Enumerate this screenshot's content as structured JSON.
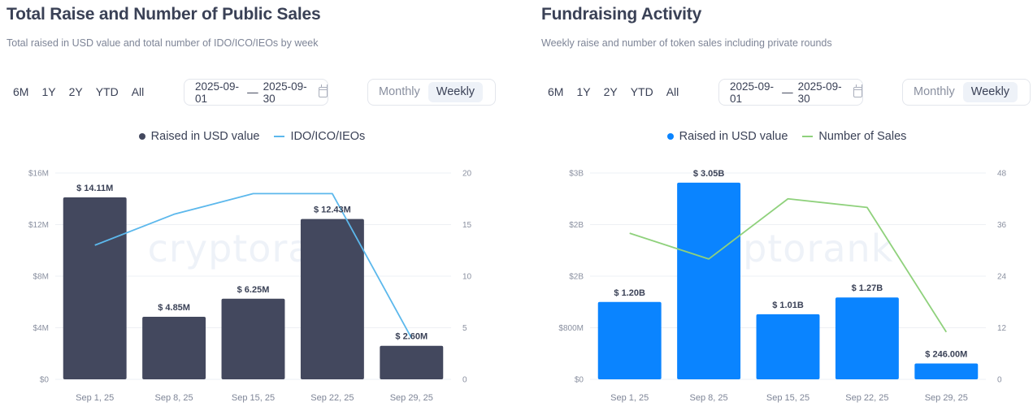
{
  "colors": {
    "bar_dark": "#43485e",
    "line_light_blue": "#5cb8ec",
    "bar_blue": "#0a84ff",
    "line_green": "#8fd17c",
    "grid": "#eef0f4"
  },
  "panels": [
    {
      "title": "Total Raise and Number of Public Sales",
      "subtitle": "Total raised in USD value and total number of IDO/ICO/IEOs by week",
      "ranges": [
        "6M",
        "1Y",
        "2Y",
        "YTD",
        "All"
      ],
      "date_from": "2025-09-01",
      "date_sep": "—",
      "date_to": "2025-09-30",
      "toggle": {
        "options": [
          "Monthly",
          "Weekly"
        ],
        "active": "Weekly"
      },
      "legend": [
        "Raised in USD value",
        "IDO/ICO/IEOs"
      ],
      "watermark": "cryptorank"
    },
    {
      "title": "Fundraising Activity",
      "subtitle": "Weekly raise and number of token sales including private rounds",
      "ranges": [
        "6M",
        "1Y",
        "2Y",
        "YTD",
        "All"
      ],
      "date_from": "2025-09-01",
      "date_sep": "—",
      "date_to": "2025-09-30",
      "toggle": {
        "options": [
          "Monthly",
          "Weekly"
        ],
        "active": "Weekly"
      },
      "legend": [
        "Raised in USD value",
        "Number of Sales"
      ],
      "watermark": "cryptorank"
    }
  ],
  "chart_data": [
    {
      "type": "bar+line",
      "title": "Total Raise and Number of Public Sales",
      "categories": [
        "Sep 1, 25",
        "Sep 8, 25",
        "Sep 15, 25",
        "Sep 22, 25",
        "Sep 29, 25"
      ],
      "series": [
        {
          "name": "Raised in USD value",
          "type": "bar",
          "axis": "left",
          "color": "#43485e",
          "values": [
            14110000,
            4850000,
            6250000,
            12430000,
            2600000
          ],
          "labels": [
            "$ 14.11M",
            "$ 4.85M",
            "$ 6.25M",
            "$ 12.43M",
            "$ 2.60M"
          ]
        },
        {
          "name": "IDO/ICO/IEOs",
          "type": "line",
          "axis": "right",
          "color": "#5cb8ec",
          "values": [
            13,
            16,
            18,
            18,
            4
          ]
        }
      ],
      "left_axis": {
        "range": [
          0,
          16000000
        ],
        "ticks": [
          "$0",
          "$4M",
          "$8M",
          "$12M",
          "$16M"
        ]
      },
      "right_axis": {
        "range": [
          0,
          20
        ],
        "ticks": [
          "0",
          "5",
          "10",
          "15",
          "20"
        ]
      },
      "grid": true,
      "legend_position": "top-center"
    },
    {
      "type": "bar+line",
      "title": "Fundraising Activity",
      "categories": [
        "Sep 1, 25",
        "Sep 8, 25",
        "Sep 15, 25",
        "Sep 22, 25",
        "Sep 29, 25"
      ],
      "series": [
        {
          "name": "Raised in USD value",
          "type": "bar",
          "axis": "left",
          "color": "#0a84ff",
          "values": [
            1200000000,
            3050000000,
            1010000000,
            1270000000,
            246000000
          ],
          "labels": [
            "$ 1.20B",
            "$ 3.05B",
            "$ 1.01B",
            "$ 1.27B",
            "$ 246.00M"
          ]
        },
        {
          "name": "Number of Sales",
          "type": "line",
          "axis": "right",
          "color": "#8fd17c",
          "values": [
            34,
            28,
            42,
            40,
            11
          ]
        }
      ],
      "left_axis": {
        "range": [
          0,
          3200000000
        ],
        "ticks": [
          "$0",
          "$800M",
          "$2B",
          "$2B",
          "$3B"
        ]
      },
      "right_axis": {
        "range": [
          0,
          48
        ],
        "ticks": [
          "0",
          "12",
          "24",
          "36",
          "48"
        ]
      },
      "grid": true,
      "legend_position": "top-center"
    }
  ]
}
